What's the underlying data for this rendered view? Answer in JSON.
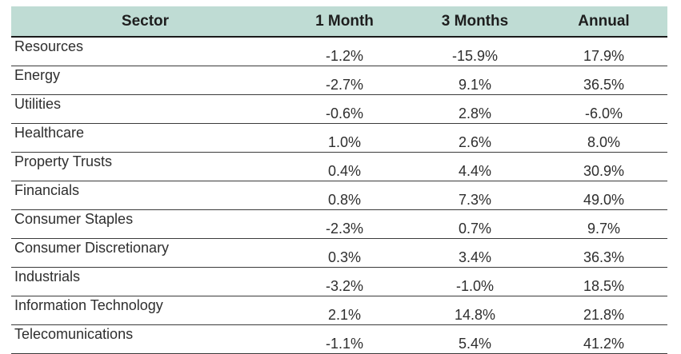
{
  "table": {
    "headers": [
      "Sector",
      "1 Month",
      "3 Months",
      "Annual"
    ],
    "rows": [
      {
        "sector": "Resources",
        "m1": "-1.2%",
        "m3": "-15.9%",
        "annual": "17.9%"
      },
      {
        "sector": "Energy",
        "m1": "-2.7%",
        "m3": "9.1%",
        "annual": "36.5%"
      },
      {
        "sector": "Utilities",
        "m1": "-0.6%",
        "m3": "2.8%",
        "annual": "-6.0%"
      },
      {
        "sector": "Healthcare",
        "m1": "1.0%",
        "m3": "2.6%",
        "annual": "8.0%"
      },
      {
        "sector": "Property Trusts",
        "m1": "0.4%",
        "m3": "4.4%",
        "annual": "30.9%"
      },
      {
        "sector": "Financials",
        "m1": "0.8%",
        "m3": "7.3%",
        "annual": "49.0%"
      },
      {
        "sector": "Consumer Staples",
        "m1": "-2.3%",
        "m3": "0.7%",
        "annual": "9.7%"
      },
      {
        "sector": "Consumer Discretionary",
        "m1": "0.3%",
        "m3": "3.4%",
        "annual": "36.3%"
      },
      {
        "sector": "Industrials",
        "m1": "-3.2%",
        "m3": "-1.0%",
        "annual": "18.5%"
      },
      {
        "sector": "Information Technology",
        "m1": "2.1%",
        "m3": "14.8%",
        "annual": "21.8%"
      },
      {
        "sector": "Telecomunications",
        "m1": "-1.1%",
        "m3": "5.4%",
        "annual": "41.2%"
      }
    ]
  },
  "colors": {
    "header_background": "#bfdcd4",
    "rule": "#3a3a3a"
  }
}
